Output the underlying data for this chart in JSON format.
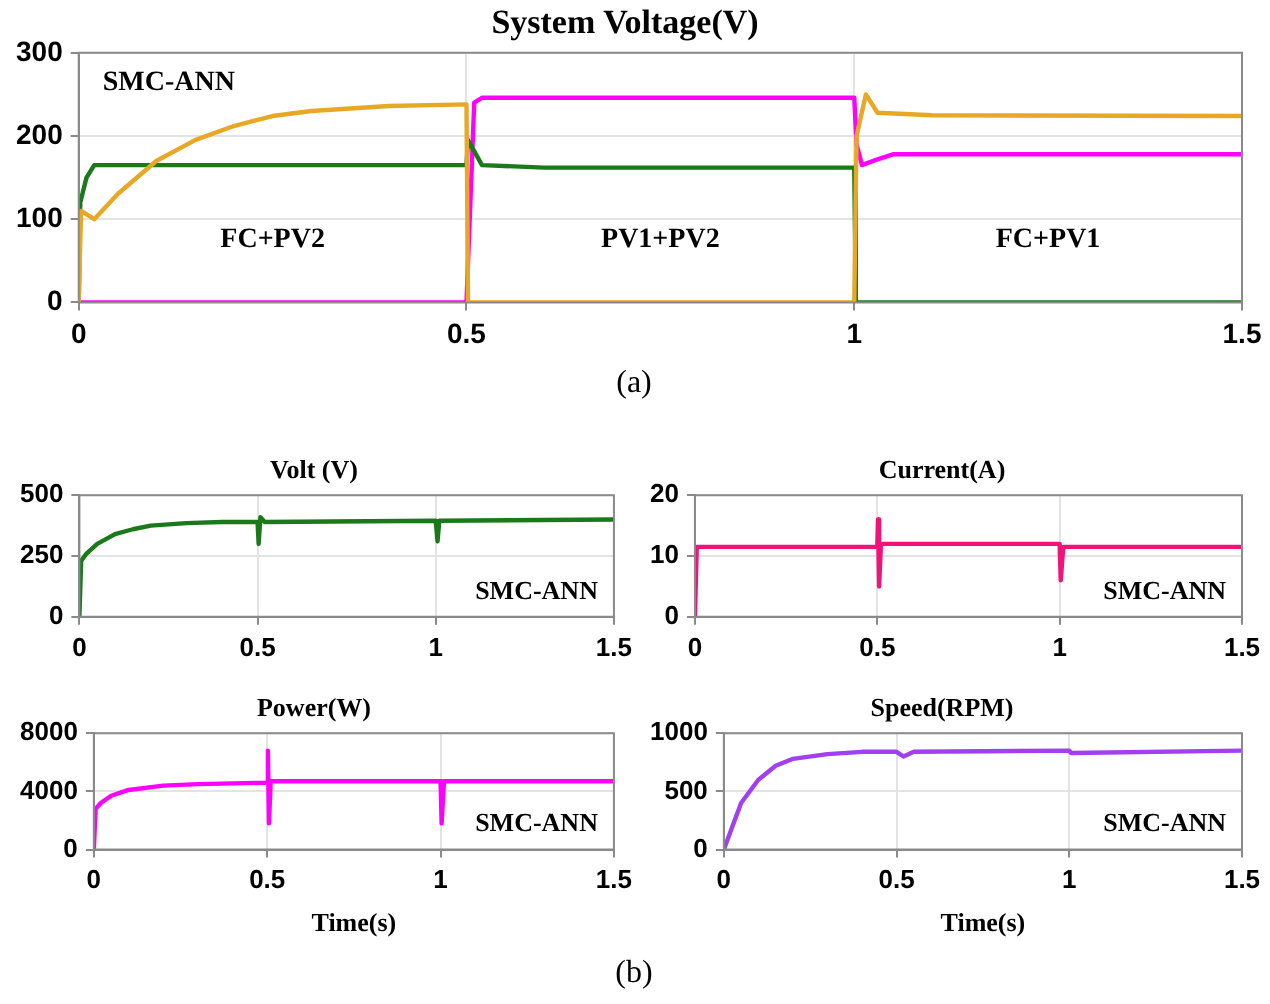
{
  "chart_data": [
    {
      "type": "line",
      "title": "System Voltage(V)",
      "xlim": [
        0,
        1.5
      ],
      "xticks": [
        0,
        0.5,
        1,
        1.5
      ],
      "ylim": [
        0,
        300
      ],
      "yticks": [
        0,
        100,
        200,
        300
      ],
      "grid": true,
      "legend": false,
      "marker": "none",
      "line_style": "solid",
      "annotations": [
        "SMC-ANN",
        "FC+PV2",
        "PV1+PV2",
        "FC+PV1",
        "(a)"
      ],
      "series": [
        {
          "color": "#e8a825",
          "x": [
            0,
            0.003,
            0.02,
            0.05,
            0.1,
            0.15,
            0.2,
            0.25,
            0.3,
            0.4,
            0.5,
            0.502,
            1.0,
            1.003,
            1.015,
            1.03,
            1.1,
            1.5
          ],
          "values": [
            0,
            110,
            100,
            130,
            170,
            195,
            212,
            224,
            230,
            236,
            238,
            0,
            0,
            200,
            250,
            228,
            225,
            224
          ]
        },
        {
          "color": "#1a7a1a",
          "x": [
            0,
            0.002,
            0.01,
            0.02,
            0.5,
            0.502,
            0.52,
            0.6,
            1.0,
            1.002,
            1.5
          ],
          "values": [
            0,
            120,
            150,
            165,
            165,
            195,
            165,
            162,
            162,
            0,
            0
          ]
        },
        {
          "color": "#ff00ff",
          "x": [
            0,
            0.5,
            0.51,
            0.52,
            1.0,
            1.003,
            1.01,
            1.03,
            1.05,
            1.5
          ],
          "values": [
            0,
            0,
            240,
            246,
            246,
            190,
            165,
            172,
            178,
            178
          ]
        }
      ]
    },
    {
      "type": "line",
      "title": "Volt (V)",
      "xlim": [
        0,
        1.5
      ],
      "xticks": [
        0,
        0.5,
        1,
        1.5
      ],
      "ylim": [
        0,
        500
      ],
      "yticks": [
        0,
        250,
        500
      ],
      "grid": true,
      "legend": false,
      "marker": "none",
      "line_style": "solid",
      "annotations": [
        "SMC-ANN"
      ],
      "series": [
        {
          "color": "#1a7a1a",
          "x": [
            0,
            0.005,
            0.02,
            0.05,
            0.1,
            0.15,
            0.2,
            0.3,
            0.4,
            0.5,
            0.503,
            0.508,
            0.52,
            1.0,
            1.005,
            1.01,
            1.5
          ],
          "values": [
            0,
            230,
            260,
            300,
            340,
            360,
            375,
            385,
            390,
            390,
            300,
            410,
            390,
            395,
            310,
            395,
            400
          ]
        }
      ]
    },
    {
      "type": "line",
      "title": "Current(A)",
      "xlim": [
        0,
        1.5
      ],
      "xticks": [
        0,
        0.5,
        1,
        1.5
      ],
      "ylim": [
        0,
        20
      ],
      "yticks": [
        0,
        10,
        20
      ],
      "grid": true,
      "legend": false,
      "marker": "none",
      "line_style": "solid",
      "annotations": [
        "SMC-ANN"
      ],
      "series": [
        {
          "color": "#f0147a",
          "x": [
            0,
            0.005,
            0.5,
            0.502,
            0.505,
            0.51,
            1.0,
            1.003,
            1.01,
            1.5
          ],
          "values": [
            0,
            11.5,
            11.5,
            16,
            5,
            12,
            12,
            6,
            11.5,
            11.5
          ]
        }
      ]
    },
    {
      "type": "line",
      "title": "Power(W)",
      "xlabel": "Time(s)",
      "xlim": [
        0,
        1.5
      ],
      "xticks": [
        0,
        0.5,
        1,
        1.5
      ],
      "ylim": [
        0,
        8000
      ],
      "yticks": [
        0,
        4000,
        8000
      ],
      "grid": true,
      "legend": false,
      "marker": "none",
      "line_style": "solid",
      "annotations": [
        "SMC-ANN"
      ],
      "series": [
        {
          "color": "#ff00ff",
          "x": [
            0,
            0.005,
            0.02,
            0.05,
            0.1,
            0.2,
            0.3,
            0.5,
            0.502,
            0.505,
            0.51,
            1.0,
            1.003,
            1.01,
            1.5
          ],
          "values": [
            0,
            2800,
            3200,
            3700,
            4100,
            4400,
            4500,
            4600,
            6800,
            1800,
            4700,
            4700,
            1800,
            4700,
            4700
          ]
        }
      ]
    },
    {
      "type": "line",
      "title": "Speed(RPM)",
      "xlabel": "Time(s)",
      "xlim": [
        0,
        1.5
      ],
      "xticks": [
        0,
        0.5,
        1,
        1.5
      ],
      "ylim": [
        0,
        1000
      ],
      "yticks": [
        0,
        500,
        1000
      ],
      "grid": true,
      "legend": false,
      "marker": "none",
      "line_style": "solid",
      "annotations": [
        "SMC-ANN",
        "(b)"
      ],
      "series": [
        {
          "color": "#a040f0",
          "x": [
            0,
            0.05,
            0.1,
            0.15,
            0.2,
            0.3,
            0.4,
            0.5,
            0.52,
            0.55,
            1.0,
            1.005,
            1.5
          ],
          "values": [
            0,
            400,
            600,
            720,
            780,
            820,
            840,
            840,
            800,
            840,
            850,
            830,
            850
          ]
        }
      ]
    }
  ]
}
